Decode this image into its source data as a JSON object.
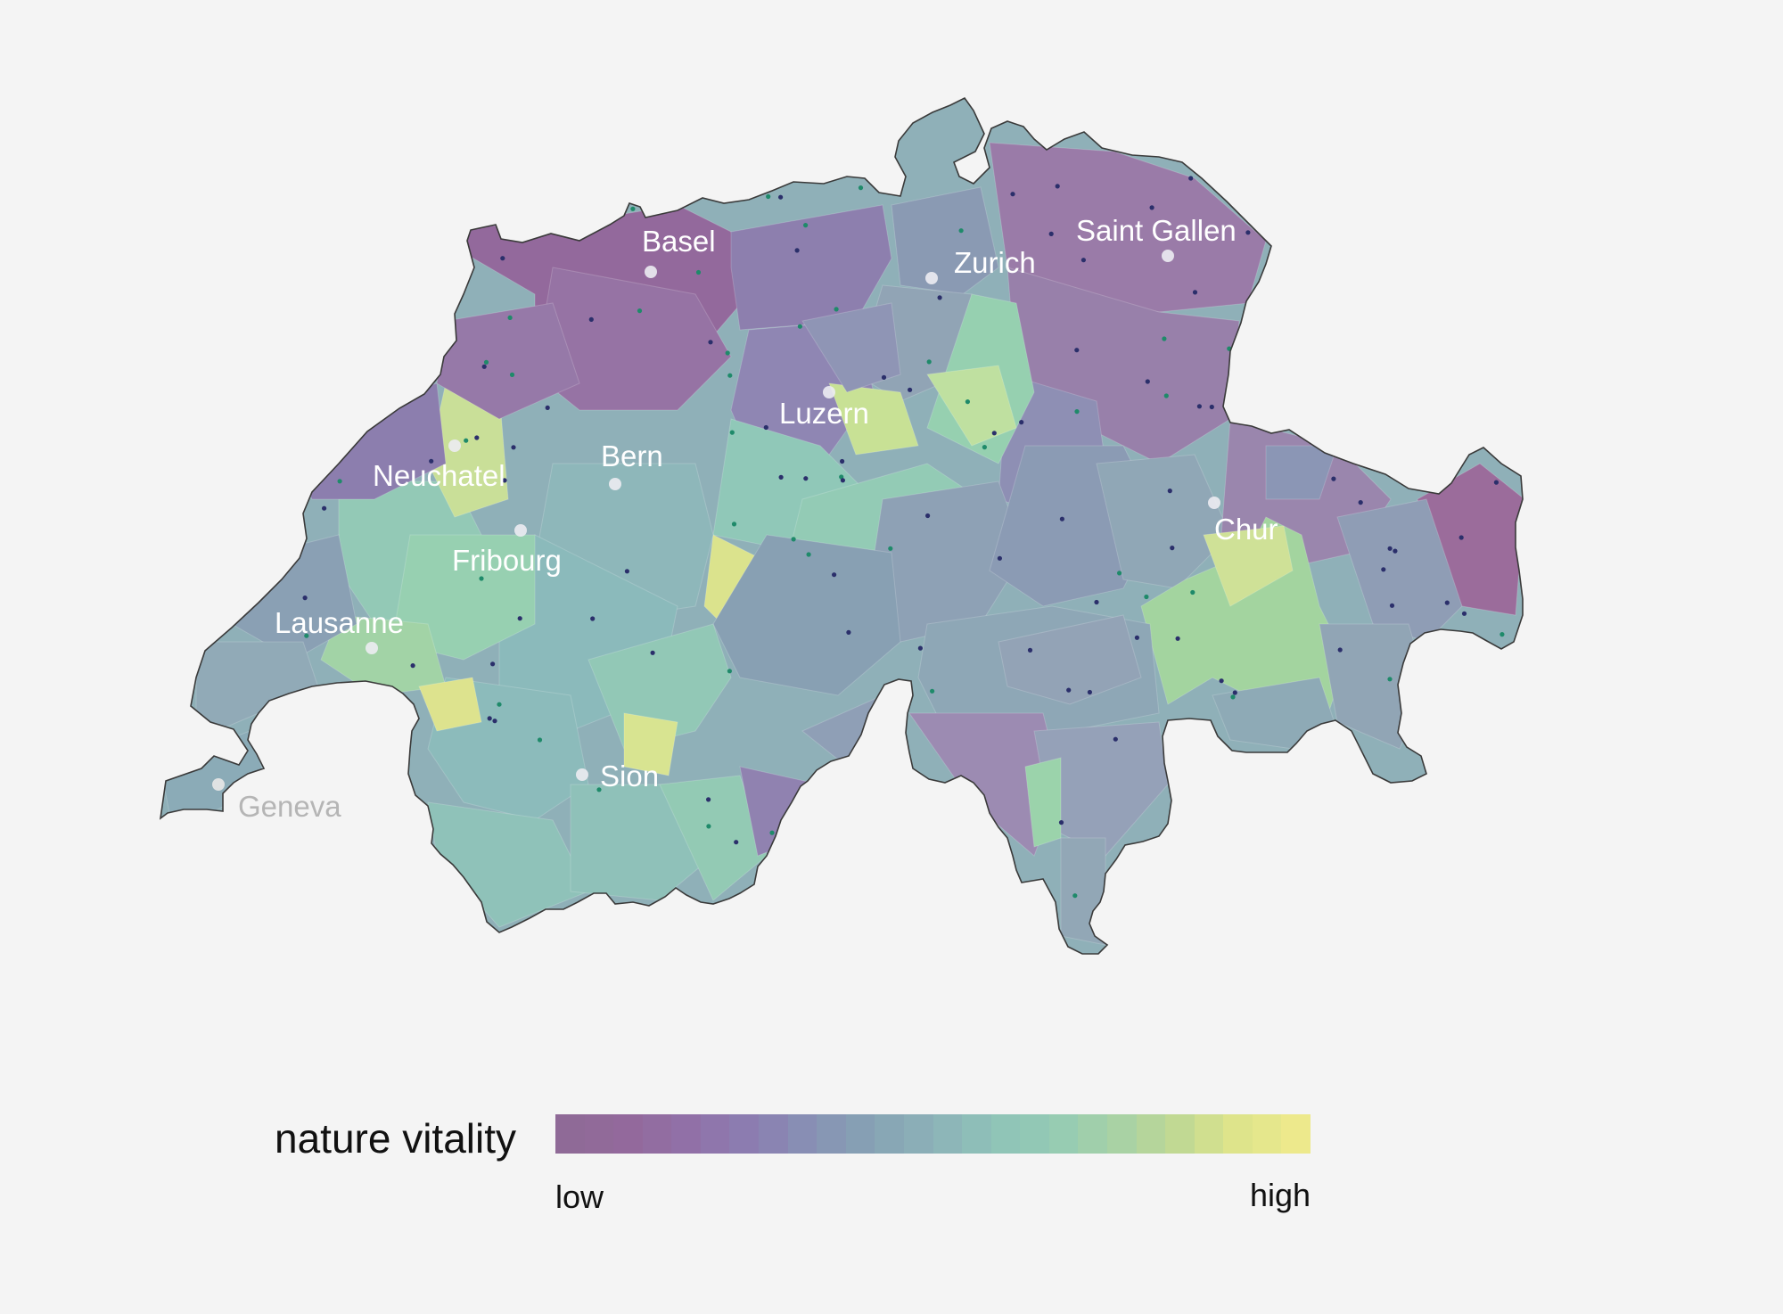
{
  "legend": {
    "title": "nature vitality",
    "low_label": "low",
    "high_label": "high",
    "scale": [
      "#8f6a97",
      "#93699c",
      "#9171a8",
      "#8b7db1",
      "#8791b4",
      "#86a3b4",
      "#8cb2b8",
      "#8fc3b8",
      "#94cbb4",
      "#a6d1a6",
      "#bfd894",
      "#dde48b",
      "#ede98c"
    ]
  },
  "cities": [
    {
      "name": "Basel",
      "muted": false
    },
    {
      "name": "Zurich",
      "muted": false
    },
    {
      "name": "Saint Gallen",
      "muted": false
    },
    {
      "name": "Luzern",
      "muted": false
    },
    {
      "name": "Bern",
      "muted": false
    },
    {
      "name": "Neuchatel",
      "muted": false
    },
    {
      "name": "Fribourg",
      "muted": false
    },
    {
      "name": "Lausanne",
      "muted": false
    },
    {
      "name": "Sion",
      "muted": false
    },
    {
      "name": "Chur",
      "muted": false
    },
    {
      "name": "Geneva",
      "muted": true
    }
  ],
  "colors": {
    "background": "#f4f4f4",
    "outline": "#3a3a3a",
    "city_label": "#ffffff",
    "city_label_muted": "#b5b5b5",
    "low": "#93699c",
    "mid_low": "#8b8fb5",
    "mid": "#8cb9bb",
    "mid_high": "#92cdb6",
    "high": "#e6e88c"
  }
}
